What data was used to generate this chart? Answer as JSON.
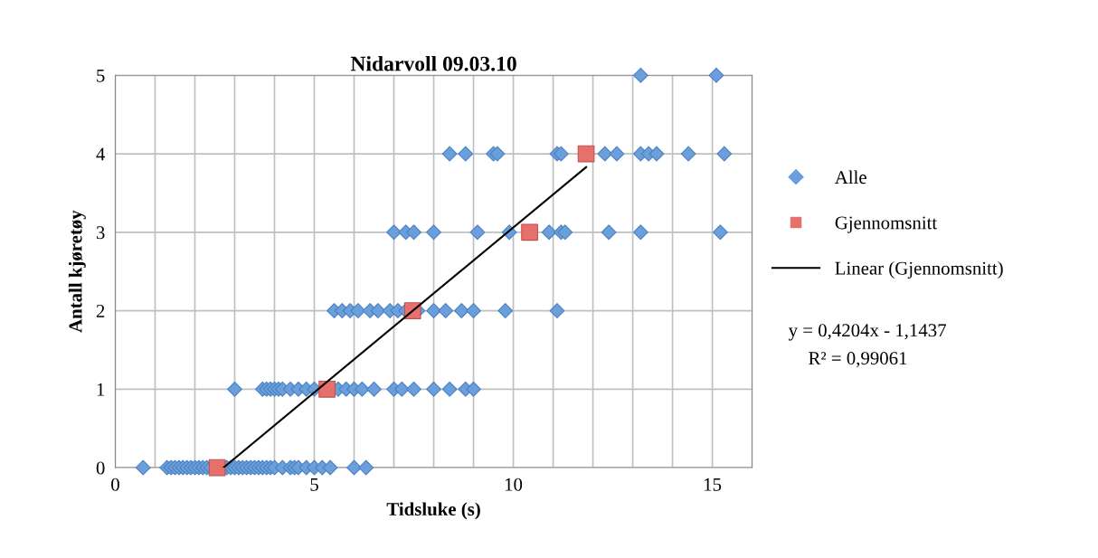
{
  "chart_data": {
    "type": "scatter",
    "title": "Nidarvoll 09.03.10",
    "xlabel": "Tidsluke (s)",
    "ylabel": "Antall kjøretøy",
    "xlim": [
      0,
      16
    ],
    "xticks": [
      0,
      {
        "value": 1,
        "label": null
      },
      {
        "value": 2,
        "label": null
      },
      {
        "value": 3,
        "label": null
      },
      {
        "value": 4,
        "label": null
      },
      5,
      {
        "value": 6,
        "label": null
      },
      {
        "value": 7,
        "label": null
      },
      {
        "value": 8,
        "label": null
      },
      {
        "value": 9,
        "label": null
      },
      10,
      {
        "value": 11,
        "label": null
      },
      {
        "value": 12,
        "label": null
      },
      {
        "value": 13,
        "label": null
      },
      {
        "value": 14,
        "label": null
      },
      15,
      {
        "value": 16,
        "label": null
      }
    ],
    "ylim": [
      0,
      5
    ],
    "yticks": [
      0,
      1,
      2,
      3,
      4,
      5
    ],
    "grid": true,
    "legend": "right",
    "annotations": [
      "y = 0,4204x - 1,1437",
      "R² = 0,99061"
    ],
    "series": [
      {
        "name": "Alle",
        "marker": "diamond",
        "color": "#6a9fdc",
        "x": [
          0.7,
          1.3,
          1.4,
          1.5,
          1.6,
          1.7,
          1.8,
          1.9,
          2.0,
          2.1,
          2.2,
          2.3,
          2.4,
          2.8,
          2.9,
          3.0,
          3.1,
          3.2,
          3.3,
          3.4,
          3.5,
          3.6,
          3.7,
          3.8,
          3.9,
          4.0,
          4.2,
          4.4,
          4.5,
          4.6,
          4.8,
          5.0,
          5.2,
          5.4,
          6.0,
          6.3,
          3.0,
          3.7,
          3.8,
          3.9,
          4.0,
          4.1,
          4.2,
          4.4,
          4.6,
          4.8,
          5.0,
          5.2,
          5.6,
          5.8,
          6.0,
          6.2,
          6.5,
          7.0,
          7.2,
          7.5,
          8.0,
          8.4,
          8.8,
          9.0,
          5.5,
          5.7,
          5.9,
          6.1,
          6.4,
          6.6,
          6.9,
          7.1,
          7.3,
          7.6,
          8.0,
          8.3,
          8.7,
          9.0,
          9.8,
          11.1,
          7.0,
          7.3,
          7.5,
          8.0,
          9.1,
          9.9,
          10.9,
          11.2,
          11.3,
          12.4,
          13.2,
          15.2,
          8.4,
          8.8,
          9.5,
          9.6,
          11.1,
          11.2,
          12.3,
          12.6,
          13.2,
          13.4,
          13.6,
          14.4,
          15.3,
          13.2,
          15.1
        ],
        "values": [
          0,
          0,
          0,
          0,
          0,
          0,
          0,
          0,
          0,
          0,
          0,
          0,
          0,
          0,
          0,
          0,
          0,
          0,
          0,
          0,
          0,
          0,
          0,
          0,
          0,
          0,
          0,
          0,
          0,
          0,
          0,
          0,
          0,
          0,
          0,
          0,
          1,
          1,
          1,
          1,
          1,
          1,
          1,
          1,
          1,
          1,
          1,
          null,
          1,
          1,
          1,
          1,
          1,
          1,
          1,
          1,
          1,
          1,
          1,
          1,
          2,
          2,
          2,
          2,
          2,
          2,
          2,
          2,
          2,
          2,
          2,
          2,
          2,
          2,
          2,
          2,
          3,
          3,
          3,
          3,
          3,
          3,
          3,
          3,
          3,
          3,
          3,
          3,
          4,
          4,
          4,
          4,
          4,
          4,
          4,
          4,
          4,
          4,
          4,
          4,
          4,
          5,
          5
        ]
      },
      {
        "name": "Gjennomsnitt",
        "marker": "square",
        "color": "#e8706c",
        "x": [
          2.56,
          5.32,
          7.47,
          10.41,
          11.83
        ],
        "values": [
          0,
          1,
          2,
          3,
          4
        ]
      },
      {
        "name": "Linear (Gjennomsnitt)",
        "type": "line",
        "marker": "none",
        "color": "#000000",
        "x": [
          2.72,
          11.83
        ],
        "values": [
          0,
          3.83
        ]
      }
    ]
  }
}
